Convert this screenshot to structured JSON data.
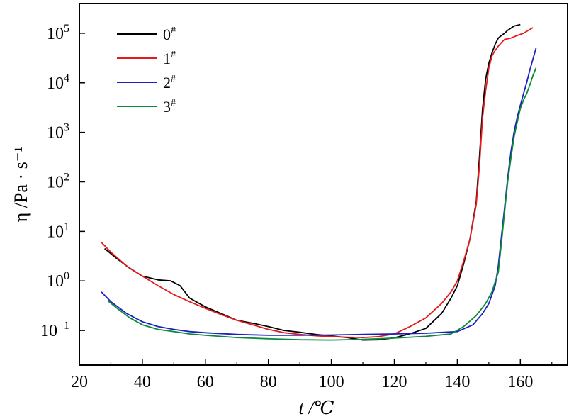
{
  "chart_data": {
    "type": "line",
    "title": "",
    "xlabel": "t /℃",
    "ylabel": "η /Pa · s⁻¹",
    "xlim": [
      20,
      175
    ],
    "ylim_log10": [
      -1.7,
      5.6
    ],
    "y_scale": "log",
    "grid": false,
    "legend_position": "top-left",
    "x_ticks": [
      20,
      40,
      60,
      80,
      100,
      120,
      140,
      160
    ],
    "y_ticks": [
      {
        "exp": -1,
        "label": "10",
        "sup": "−1"
      },
      {
        "exp": 0,
        "label": "10",
        "sup": "0"
      },
      {
        "exp": 1,
        "label": "10",
        "sup": "1"
      },
      {
        "exp": 2,
        "label": "10",
        "sup": "2"
      },
      {
        "exp": 3,
        "label": "10",
        "sup": "3"
      },
      {
        "exp": 4,
        "label": "10",
        "sup": "4"
      },
      {
        "exp": 5,
        "label": "10",
        "sup": "5"
      }
    ],
    "series": [
      {
        "name": "0#",
        "color": "#000000",
        "x": [
          28,
          32,
          36,
          40,
          45,
          49,
          52,
          55,
          60,
          65,
          70,
          75,
          80,
          85,
          90,
          95,
          100,
          105,
          110,
          115,
          120,
          125,
          130,
          135,
          138,
          140,
          142,
          144,
          146,
          147,
          148,
          149,
          150,
          151,
          152,
          153,
          154,
          155,
          156,
          158,
          160
        ],
        "y": [
          4.5,
          2.8,
          1.8,
          1.25,
          1.05,
          1.0,
          0.8,
          0.45,
          0.3,
          0.22,
          0.16,
          0.14,
          0.12,
          0.1,
          0.092,
          0.083,
          0.077,
          0.072,
          0.064,
          0.065,
          0.071,
          0.086,
          0.11,
          0.22,
          0.45,
          0.8,
          2.2,
          7.0,
          40,
          300,
          3000,
          12000,
          25000,
          40000,
          60000,
          80000,
          90000,
          100000,
          115000,
          140000,
          150000
        ]
      },
      {
        "name": "1#",
        "color": "#e31a1c",
        "x": [
          27,
          30,
          35,
          40,
          45,
          50,
          55,
          60,
          65,
          70,
          75,
          80,
          85,
          90,
          95,
          100,
          105,
          110,
          115,
          120,
          125,
          130,
          135,
          138,
          140,
          142,
          144,
          146,
          147,
          148,
          149,
          150,
          151,
          152,
          153,
          154,
          155,
          157,
          159,
          161,
          164
        ],
        "y": [
          6.0,
          3.8,
          2.0,
          1.25,
          0.8,
          0.53,
          0.38,
          0.28,
          0.21,
          0.16,
          0.13,
          0.105,
          0.09,
          0.083,
          0.078,
          0.075,
          0.073,
          0.072,
          0.075,
          0.085,
          0.12,
          0.18,
          0.35,
          0.6,
          1.0,
          2.5,
          7.0,
          35,
          200,
          2000,
          7000,
          20000,
          35000,
          45000,
          55000,
          65000,
          75000,
          80000,
          90000,
          100000,
          130000
        ]
      },
      {
        "name": "2#",
        "color": "#1f1fbf",
        "x": [
          27,
          30,
          35,
          40,
          45,
          50,
          55,
          60,
          70,
          80,
          90,
          100,
          110,
          120,
          130,
          140,
          145,
          148,
          150,
          152,
          153,
          154,
          155,
          156,
          157,
          158,
          159,
          160,
          161,
          162,
          163,
          164,
          165
        ],
        "y": [
          0.6,
          0.38,
          0.22,
          0.15,
          0.12,
          0.105,
          0.095,
          0.09,
          0.083,
          0.08,
          0.08,
          0.081,
          0.083,
          0.085,
          0.088,
          0.095,
          0.13,
          0.22,
          0.35,
          0.8,
          2.0,
          8.0,
          30,
          120,
          400,
          1000,
          2000,
          3500,
          6000,
          10000,
          18000,
          30000,
          50000
        ]
      },
      {
        "name": "3#",
        "color": "#0a8a3a",
        "x": [
          29,
          32,
          36,
          40,
          45,
          50,
          55,
          60,
          70,
          80,
          90,
          100,
          110,
          120,
          130,
          138,
          142,
          146,
          149,
          151,
          153,
          154,
          155,
          156,
          157,
          158,
          159,
          160,
          161,
          162,
          163,
          164,
          165
        ],
        "y": [
          0.4,
          0.28,
          0.18,
          0.13,
          0.105,
          0.095,
          0.085,
          0.08,
          0.072,
          0.068,
          0.065,
          0.064,
          0.066,
          0.07,
          0.076,
          0.085,
          0.12,
          0.2,
          0.35,
          0.6,
          1.5,
          6.0,
          25,
          100,
          300,
          800,
          1600,
          3000,
          4500,
          6000,
          9000,
          14000,
          20000
        ]
      }
    ]
  }
}
